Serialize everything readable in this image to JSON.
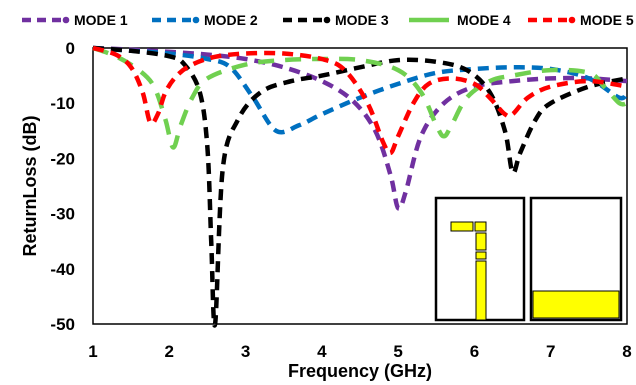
{
  "chart_data": {
    "type": "line",
    "xlabel": "Frequency (GHz)",
    "ylabel": "ReturnLoss (dB)",
    "xlim": [
      1,
      8
    ],
    "ylim": [
      -50,
      0
    ],
    "xticks": [
      "1",
      "2",
      "3",
      "4",
      "5",
      "6",
      "7",
      "8"
    ],
    "yticks": [
      "0",
      "-10",
      "-20",
      "-30",
      "-40",
      "-50"
    ],
    "grid": false,
    "legend_position": "top",
    "series": [
      {
        "name": "MODE 1",
        "color": "#7030a0",
        "dash": "dash",
        "x": [
          1,
          1.5,
          2,
          2.5,
          3,
          3.5,
          4,
          4.4,
          4.7,
          4.9,
          5.0,
          5.1,
          5.3,
          5.6,
          6,
          6.5,
          7,
          7.5,
          8
        ],
        "y": [
          0,
          -0.3,
          -0.7,
          -1.2,
          -2,
          -3.5,
          -6,
          -9.5,
          -15,
          -23,
          -29,
          -26,
          -16,
          -10,
          -7,
          -6,
          -5.5,
          -5.5,
          -6
        ]
      },
      {
        "name": "MODE 2",
        "color": "#0070c0",
        "dash": "dash",
        "x": [
          1,
          1.5,
          2,
          2.5,
          2.8,
          3.1,
          3.4,
          3.7,
          4,
          4.5,
          5,
          5.5,
          6,
          6.5,
          7,
          7.5,
          7.9,
          8
        ],
        "y": [
          0,
          -0.5,
          -1,
          -2,
          -3.5,
          -9,
          -15,
          -14,
          -12,
          -9,
          -6.5,
          -4.5,
          -3.8,
          -3.5,
          -3.8,
          -5.5,
          -9,
          -8
        ]
      },
      {
        "name": "MODE 3",
        "color": "#000000",
        "dash": "dash",
        "x": [
          1,
          1.5,
          2,
          2.2,
          2.4,
          2.5,
          2.55,
          2.6,
          2.7,
          2.9,
          3.2,
          3.6,
          4,
          4.5,
          5,
          5.5,
          5.9,
          6.2,
          6.4,
          6.5,
          6.6,
          6.8,
          7,
          7.5,
          8
        ],
        "y": [
          0,
          -0.5,
          -1.5,
          -3,
          -8,
          -18,
          -35,
          -50,
          -22,
          -13,
          -8,
          -6,
          -5,
          -3.5,
          -2.2,
          -2.5,
          -4,
          -8,
          -15,
          -22.5,
          -19,
          -13,
          -10,
          -7,
          -5.5
        ]
      },
      {
        "name": "MODE 4",
        "color": "#70d050",
        "dash": "dash",
        "x": [
          1,
          1.3,
          1.6,
          1.8,
          1.95,
          2.05,
          2.15,
          2.3,
          2.5,
          3,
          3.5,
          4,
          4.5,
          5,
          5.3,
          5.5,
          5.6,
          5.7,
          5.9,
          6.2,
          6.5,
          7,
          7.5,
          7.7,
          7.9,
          8
        ],
        "y": [
          0,
          -1.5,
          -4,
          -7,
          -13,
          -18,
          -14,
          -9,
          -5.5,
          -3,
          -2.2,
          -2,
          -2.2,
          -4,
          -8,
          -14,
          -16,
          -14,
          -9,
          -6,
          -5,
          -4,
          -4.5,
          -7,
          -10,
          -10
        ]
      },
      {
        "name": "MODE 5",
        "color": "#ff0000",
        "dash": "dash",
        "x": [
          1,
          1.3,
          1.5,
          1.65,
          1.75,
          1.85,
          1.95,
          2.1,
          2.3,
          2.6,
          3,
          3.5,
          4,
          4.3,
          4.6,
          4.8,
          4.9,
          5.0,
          5.2,
          5.4,
          5.7,
          6,
          6.2,
          6.4,
          6.5,
          6.7,
          7,
          7.5,
          8
        ],
        "y": [
          0,
          -1.2,
          -3.5,
          -8,
          -13.5,
          -12,
          -8,
          -5,
          -3,
          -1.6,
          -1,
          -1,
          -2,
          -4,
          -10,
          -17,
          -19,
          -16,
          -10,
          -6.5,
          -5.5,
          -6.5,
          -9,
          -12,
          -12,
          -9,
          -7,
          -6,
          -7
        ]
      }
    ],
    "insets": [
      {
        "type": "image",
        "description_free": true
      },
      {
        "type": "image",
        "description_free": true
      }
    ]
  }
}
